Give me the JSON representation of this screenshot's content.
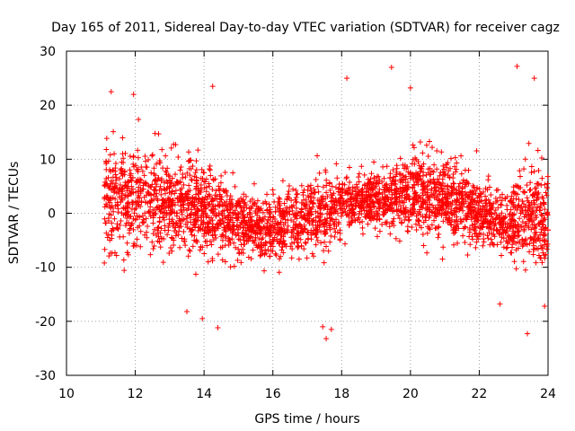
{
  "chart_data": {
    "type": "scatter",
    "title": "Day 165 of 2011, Sidereal Day-to-day VTEC variation (SDTVAR) for receiver cagz",
    "xlabel": "GPS time / hours",
    "ylabel": "SDTVAR / TECUs",
    "xlim": [
      10,
      24
    ],
    "ylim": [
      -30,
      30
    ],
    "xticks": [
      "10",
      "12",
      "14",
      "16",
      "18",
      "20",
      "22",
      "24"
    ],
    "yticks": [
      "30",
      "20",
      "10",
      "0",
      "-10",
      "-20",
      "-30"
    ],
    "grid": true,
    "marker": "+",
    "color": "#ff0000",
    "series": [
      {
        "name": "SDTVAR",
        "x_range_hours": [
          11.1,
          24.0
        ],
        "trend": [
          {
            "x": 11.2,
            "y_mean": 2.5,
            "y_spread": 5.5
          },
          {
            "x": 12.0,
            "y_mean": 3.0,
            "y_spread": 5.0
          },
          {
            "x": 13.0,
            "y_mean": 2.0,
            "y_spread": 5.0
          },
          {
            "x": 14.0,
            "y_mean": 0.5,
            "y_spread": 5.0
          },
          {
            "x": 15.0,
            "y_mean": -1.5,
            "y_spread": 3.5
          },
          {
            "x": 15.8,
            "y_mean": -3.0,
            "y_spread": 3.0
          },
          {
            "x": 16.5,
            "y_mean": -1.5,
            "y_spread": 3.5
          },
          {
            "x": 17.5,
            "y_mean": 0.5,
            "y_spread": 4.0
          },
          {
            "x": 18.5,
            "y_mean": 2.0,
            "y_spread": 2.5
          },
          {
            "x": 19.5,
            "y_mean": 3.0,
            "y_spread": 3.5
          },
          {
            "x": 20.5,
            "y_mean": 4.0,
            "y_spread": 4.5
          },
          {
            "x": 21.5,
            "y_mean": 1.0,
            "y_spread": 4.0
          },
          {
            "x": 22.5,
            "y_mean": -1.5,
            "y_spread": 3.0
          },
          {
            "x": 23.2,
            "y_mean": -1.0,
            "y_spread": 4.5
          },
          {
            "x": 24.0,
            "y_mean": -1.0,
            "y_spread": 6.0
          }
        ],
        "notable_points": [
          {
            "x": 11.3,
            "y": 22.5
          },
          {
            "x": 11.95,
            "y": 22.0
          },
          {
            "x": 14.25,
            "y": 23.5
          },
          {
            "x": 18.15,
            "y": 25.0
          },
          {
            "x": 19.45,
            "y": 27.0
          },
          {
            "x": 20.0,
            "y": 23.2
          },
          {
            "x": 23.1,
            "y": 27.2
          },
          {
            "x": 23.6,
            "y": 25.0
          },
          {
            "x": 13.5,
            "y": -18.2
          },
          {
            "x": 13.95,
            "y": -19.5
          },
          {
            "x": 14.4,
            "y": -21.2
          },
          {
            "x": 17.45,
            "y": -21.0
          },
          {
            "x": 17.55,
            "y": -23.2
          },
          {
            "x": 17.7,
            "y": -21.5
          },
          {
            "x": 23.4,
            "y": -22.3
          },
          {
            "x": 22.6,
            "y": -16.8
          },
          {
            "x": 23.9,
            "y": -17.2
          }
        ]
      }
    ]
  }
}
